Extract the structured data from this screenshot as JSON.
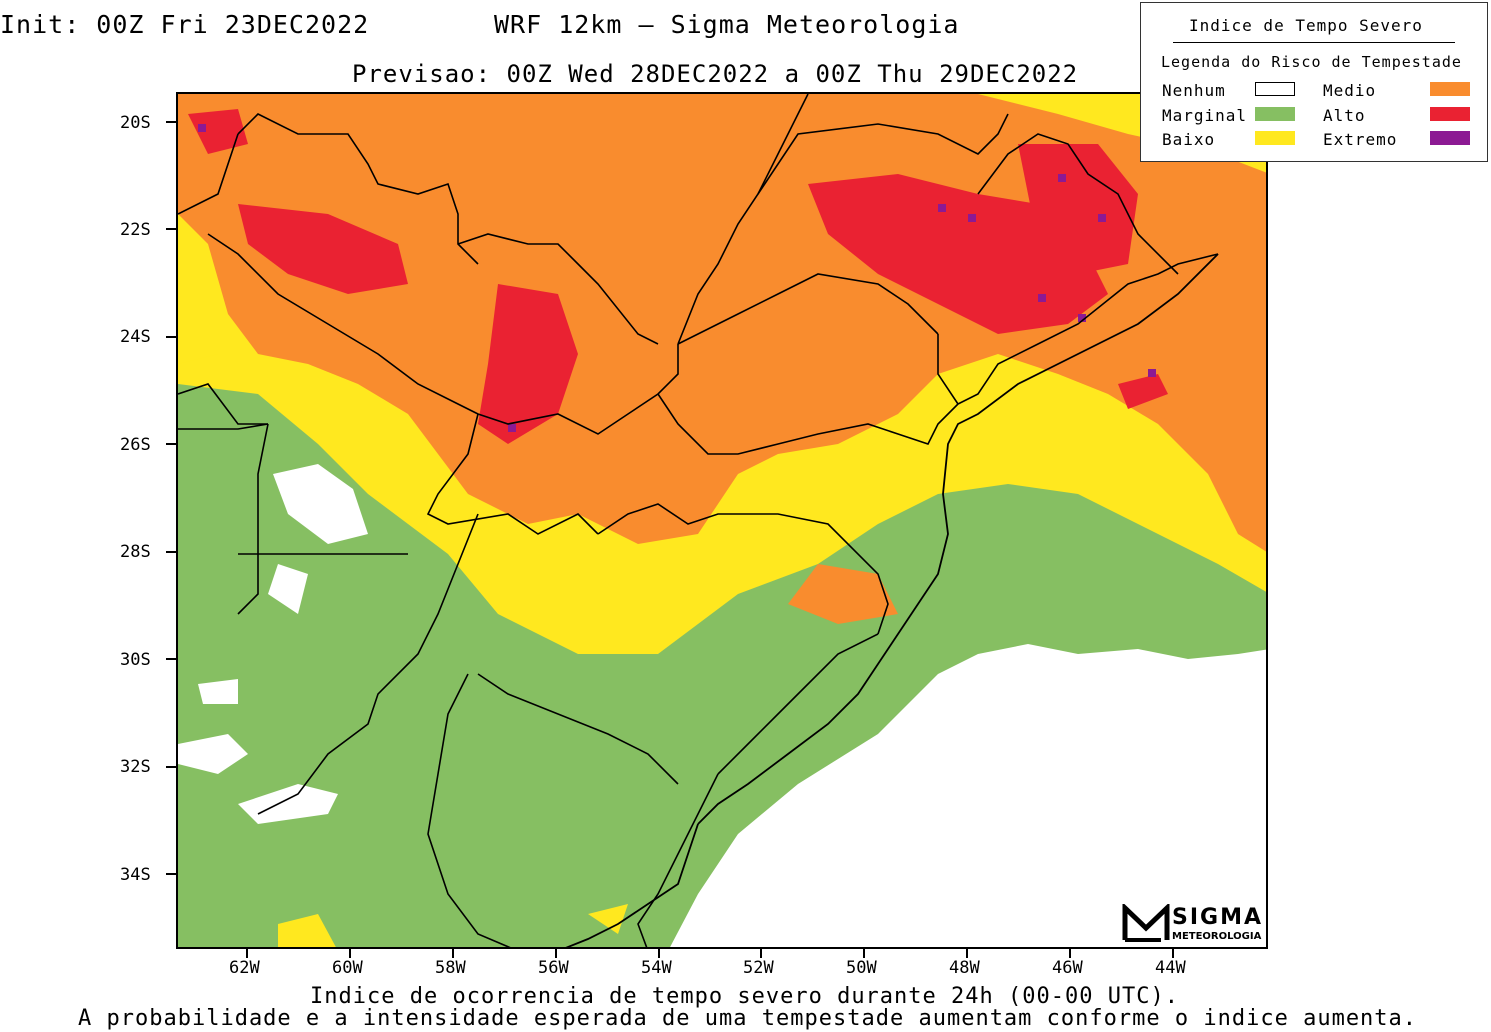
{
  "header": {
    "init": "Init: 00Z Fri 23DEC2022",
    "title": "WRF 12km — Sigma Meteorologia",
    "forecast": "Previsao: 00Z Wed 28DEC2022 a 00Z Thu 29DEC2022"
  },
  "legend": {
    "title": "Indice de Tempo Severo",
    "subtitle": "Legenda do Risco de Tempestade",
    "items": [
      {
        "label": "Nenhum",
        "color": "#ffffff"
      },
      {
        "label": "Marginal",
        "color": "#86bf62"
      },
      {
        "label": "Baixo",
        "color": "#ffe81f"
      },
      {
        "label": "Medio",
        "color": "#f98c2e"
      },
      {
        "label": "Alto",
        "color": "#ea2232"
      },
      {
        "label": "Extremo",
        "color": "#8c1a93"
      }
    ]
  },
  "axes": {
    "lat_labels": [
      "20S",
      "22S",
      "24S",
      "26S",
      "28S",
      "30S",
      "32S",
      "34S"
    ],
    "lon_labels": [
      "62W",
      "60W",
      "58W",
      "56W",
      "54W",
      "52W",
      "50W",
      "48W",
      "46W",
      "44W"
    ]
  },
  "footer": {
    "line1": "Indice de ocorrencia de tempo severo durante 24h (00-00 UTC).",
    "line2": "A probabilidade e a intensidade esperada de uma tempestade aumentam conforme o indice aumenta."
  },
  "logo": {
    "name": "SIGMA",
    "sub": "METEOROLOGIA"
  }
}
